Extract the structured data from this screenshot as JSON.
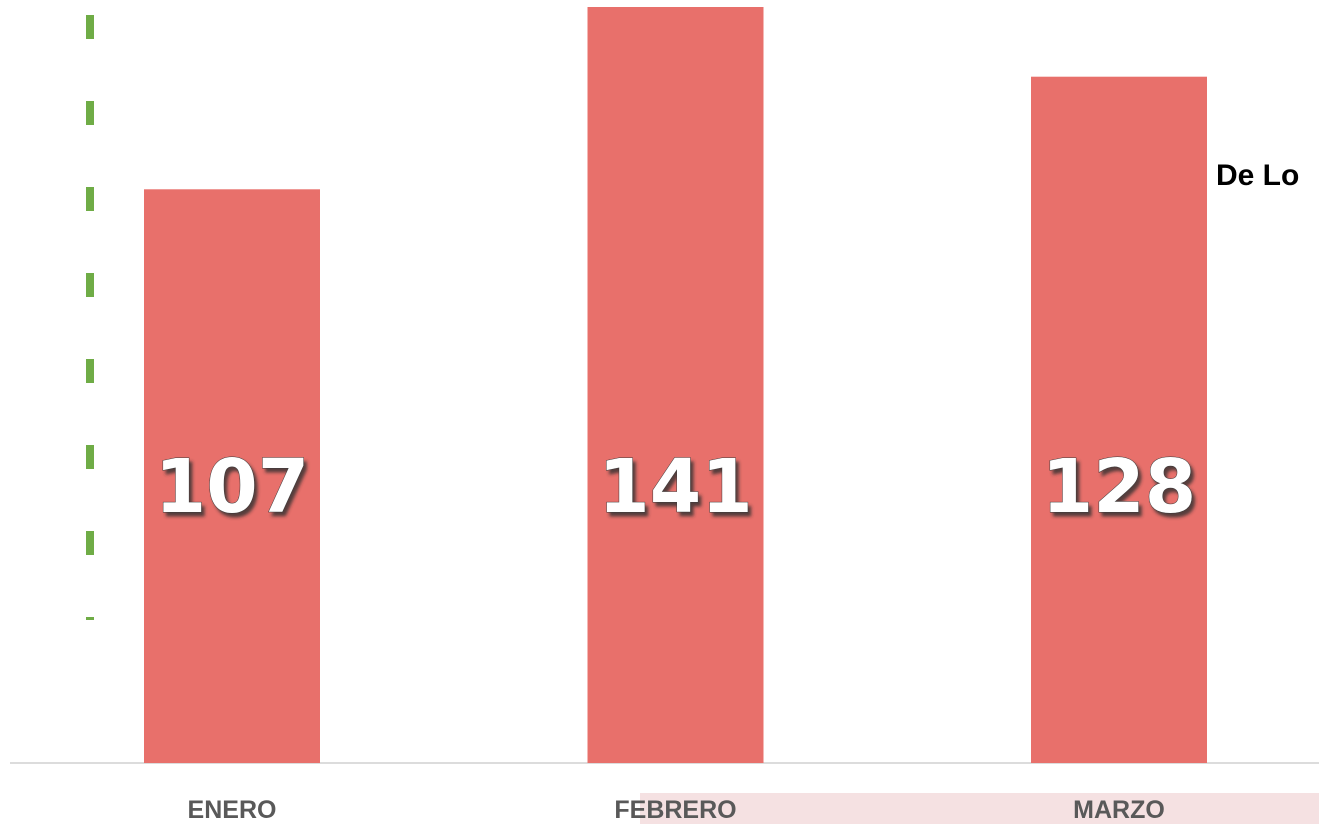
{
  "chart_data": {
    "type": "bar",
    "categories": [
      "ENERO",
      "FEBRERO",
      "MARZO"
    ],
    "values": [
      107,
      141,
      128
    ],
    "color": "#e8706b",
    "annotation": "De Lo"
  }
}
